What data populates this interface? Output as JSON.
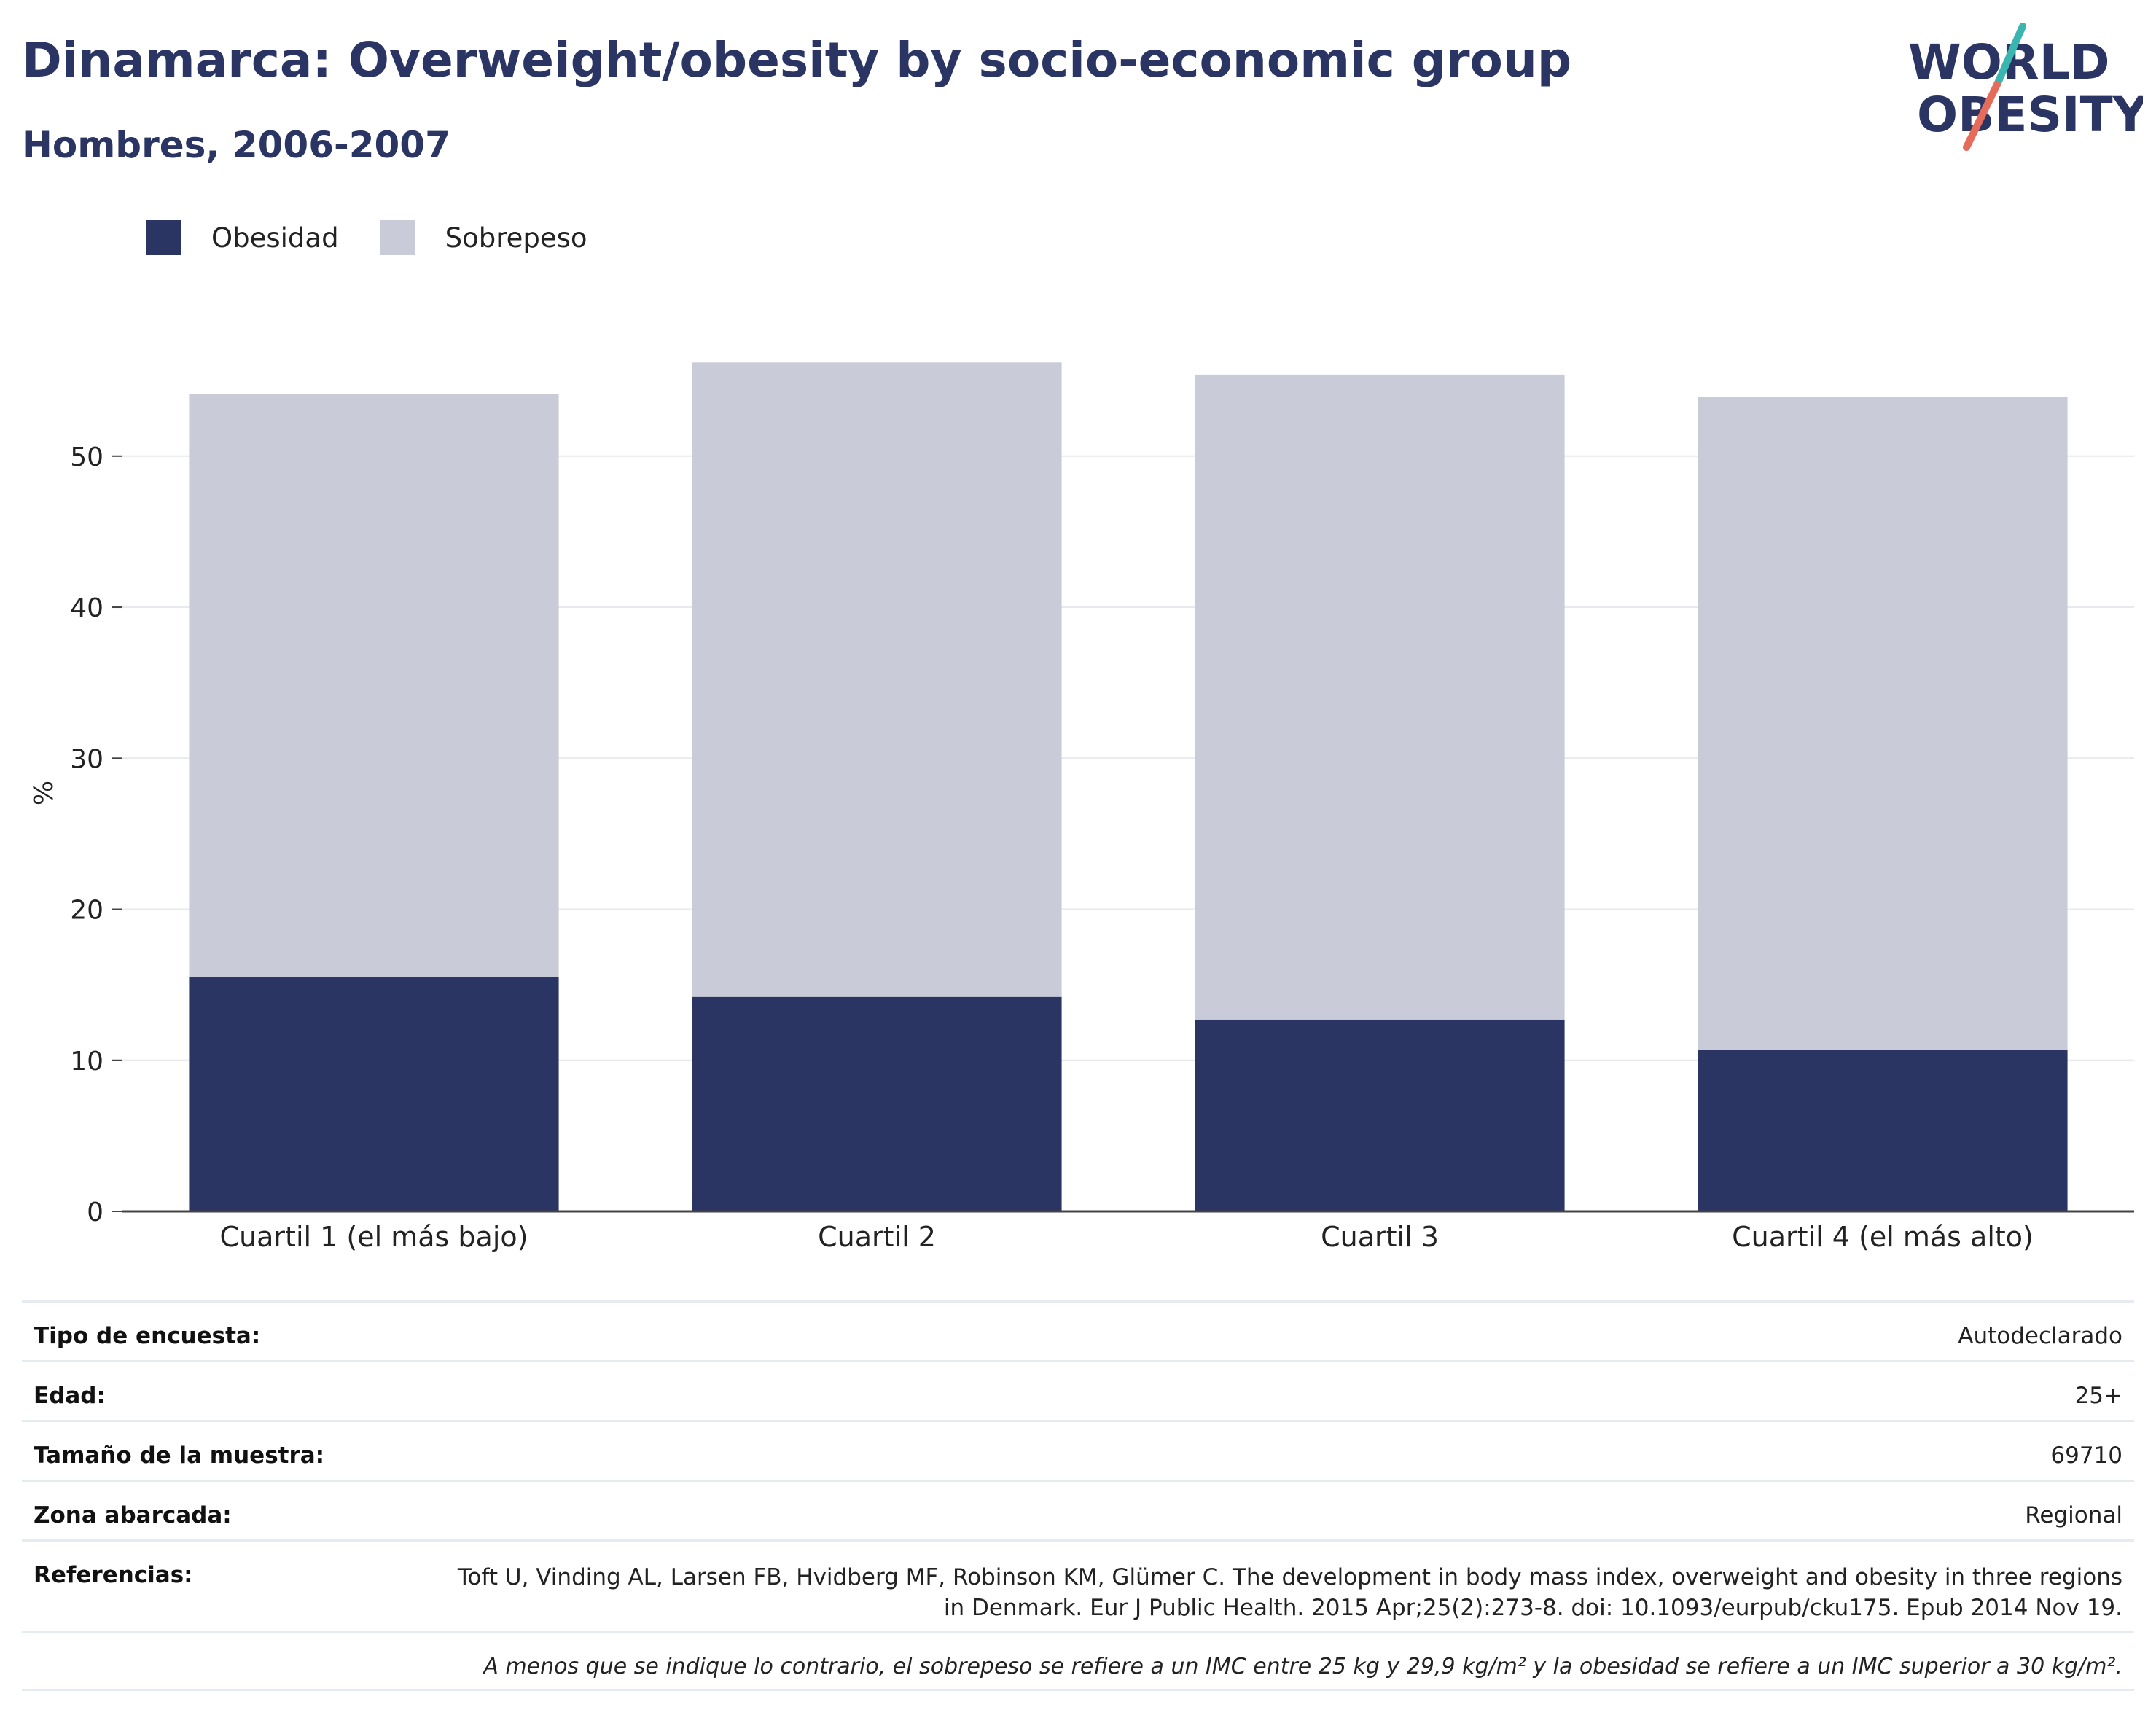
{
  "title": "Dinamarca: Overweight/obesity by socio-economic group",
  "subtitle": "Hombres, 2006-2007",
  "logo": {
    "line1": "WORLD",
    "line2": "OBESITY",
    "colors": {
      "navy": "#2a3563",
      "teal": "#3ab5b0",
      "coral": "#e56b5a"
    }
  },
  "legend": [
    {
      "label": "Obesidad",
      "color": "#2a3563"
    },
    {
      "label": "Sobrepeso",
      "color": "#c9cbd8"
    }
  ],
  "chart_data": {
    "type": "bar",
    "stacked": true,
    "categories": [
      "Cuartil 1 (el más bajo)",
      "Cuartil 2",
      "Cuartil 3",
      "Cuartil 4 (el más alto)"
    ],
    "series": [
      {
        "name": "Obesidad",
        "values": [
          15.5,
          14.2,
          12.7,
          10.7
        ],
        "color": "#2a3563"
      },
      {
        "name": "Sobrepeso",
        "values": [
          38.6,
          42.0,
          42.7,
          43.2
        ],
        "color": "#c9cbd8"
      }
    ],
    "ylabel": "%",
    "ylim": [
      0,
      58
    ],
    "yticks": [
      0,
      10,
      20,
      30,
      40,
      50
    ],
    "grid": true,
    "legend_position": "top-left"
  },
  "info": {
    "survey_type": {
      "label": "Tipo de encuesta:",
      "value": "Autodeclarado"
    },
    "age": {
      "label": "Edad:",
      "value": "25+"
    },
    "sample_size": {
      "label": "Tamaño de la muestra:",
      "value": "69710"
    },
    "area": {
      "label": "Zona abarcada:",
      "value": "Regional"
    },
    "references": {
      "label": "Referencias:",
      "value": "Toft U, Vinding AL, Larsen FB, Hvidberg MF, Robinson KM, Glümer C. The development in body mass index, overweight and obesity in three regions in Denmark. Eur J Public Health. 2015 Apr;25(2):273-8. doi: 10.1093/eurpub/cku175. Epub 2014 Nov 19."
    },
    "note": "A menos que se indique lo contrario, el sobrepeso se refiere a un IMC entre 25 kg y 29,9 kg/m² y la obesidad se refiere a un IMC superior a 30 kg/m²."
  }
}
